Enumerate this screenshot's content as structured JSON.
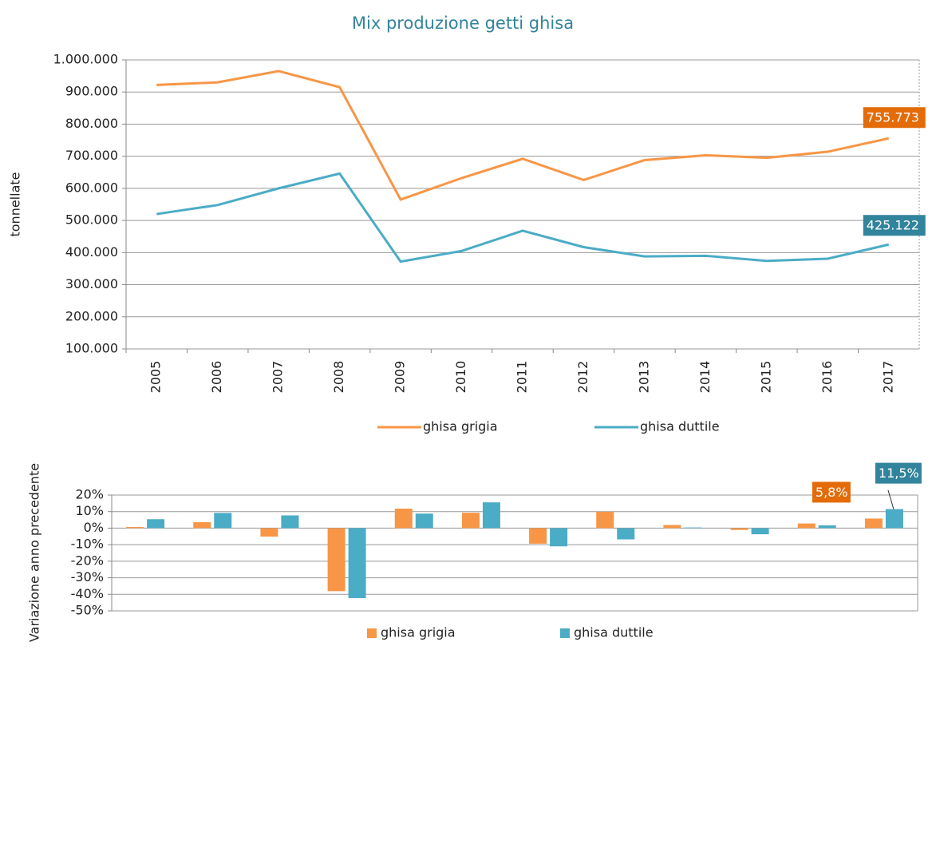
{
  "chart_data": [
    {
      "type": "line",
      "title": "Mix produzione getti ghisa",
      "y_label": "tonnellate",
      "categories": [
        "2005",
        "2006",
        "2007",
        "2008",
        "2009",
        "2010",
        "2011",
        "2012",
        "2013",
        "2014",
        "2015",
        "2016",
        "2017"
      ],
      "series": [
        {
          "name": "ghisa grigia",
          "color": "#f79646",
          "label_color": "#e36c09",
          "values": [
            922000,
            930000,
            965000,
            915000,
            565000,
            632000,
            692000,
            626000,
            688000,
            703000,
            695000,
            714000,
            755773
          ],
          "value_labels": [
            null,
            null,
            null,
            null,
            null,
            null,
            null,
            null,
            null,
            null,
            null,
            null,
            "755.773"
          ]
        },
        {
          "name": "ghisa duttile",
          "color": "#4bacc6",
          "label_color": "#31849b",
          "values": [
            520000,
            548000,
            600000,
            646000,
            372000,
            405000,
            468000,
            417000,
            388000,
            390000,
            374000,
            381000,
            425122
          ],
          "value_labels": [
            null,
            null,
            null,
            null,
            null,
            null,
            null,
            null,
            null,
            null,
            null,
            null,
            "425.122"
          ]
        }
      ],
      "ylim": [
        100000,
        1000000
      ],
      "yticks": [
        {
          "value": 100000,
          "label": "100.000"
        },
        {
          "value": 200000,
          "label": "200.000"
        },
        {
          "value": 300000,
          "label": "300.000"
        },
        {
          "value": 400000,
          "label": "400.000"
        },
        {
          "value": 500000,
          "label": "500.000"
        },
        {
          "value": 600000,
          "label": "600.000"
        },
        {
          "value": 700000,
          "label": "700.000"
        },
        {
          "value": 800000,
          "label": "800.000"
        },
        {
          "value": 900000,
          "label": "900.000"
        },
        {
          "value": 1000000,
          "label": "1.000.000"
        }
      ],
      "grid": true
    },
    {
      "type": "bar",
      "y_label": "Variazione anno precedente",
      "categories": [
        null,
        null,
        null,
        null,
        null,
        null,
        null,
        null,
        null,
        null,
        null,
        null
      ],
      "series": [
        {
          "name": "ghisa grigia",
          "color": "#f79646",
          "label_color": "#e36c09",
          "values": [
            0.7,
            3.6,
            -5.1,
            -38.1,
            11.8,
            9.3,
            -9.4,
            9.9,
            1.9,
            -1.1,
            2.8,
            5.8
          ],
          "value_labels": [
            null,
            null,
            null,
            null,
            null,
            null,
            null,
            null,
            null,
            null,
            null,
            "5,8%"
          ]
        },
        {
          "name": "ghisa duttile",
          "color": "#4bacc6",
          "label_color": "#31849b",
          "values": [
            5.4,
            9.2,
            7.7,
            -42.3,
            8.8,
            15.6,
            -11.0,
            -6.8,
            0.4,
            -3.7,
            1.7,
            11.5
          ],
          "value_labels": [
            null,
            null,
            null,
            null,
            null,
            null,
            null,
            null,
            null,
            null,
            null,
            "11,5%"
          ]
        }
      ],
      "ylim": [
        -50,
        20
      ],
      "yticks": [
        {
          "value": -50,
          "label": "-50%"
        },
        {
          "value": -40,
          "label": "-40%"
        },
        {
          "value": -30,
          "label": "-30%"
        },
        {
          "value": -20,
          "label": "-20%"
        },
        {
          "value": -10,
          "label": "-10%"
        },
        {
          "value": 0,
          "label": "0%"
        },
        {
          "value": 10,
          "label": "10%"
        },
        {
          "value": 20,
          "label": "20%"
        }
      ],
      "grid": true
    }
  ]
}
